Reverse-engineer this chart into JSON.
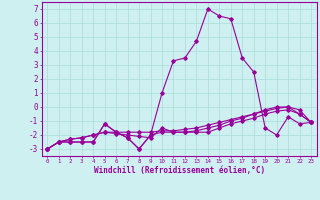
{
  "xlabel": "Windchill (Refroidissement éolien,°C)",
  "ylabel": "",
  "background_color": "#cef0f0",
  "grid_color": "#aadddd",
  "line_color": "#990099",
  "x_ticks": [
    0,
    1,
    2,
    3,
    4,
    5,
    6,
    7,
    8,
    9,
    10,
    11,
    12,
    13,
    14,
    15,
    16,
    17,
    18,
    19,
    20,
    21,
    22,
    23
  ],
  "ylim": [
    -3.5,
    7.5
  ],
  "xlim": [
    -0.5,
    23.5
  ],
  "y_ticks": [
    -3,
    -2,
    -1,
    0,
    1,
    2,
    3,
    4,
    5,
    6,
    7
  ],
  "series": [
    {
      "x": [
        0,
        1,
        2,
        3,
        4,
        5,
        6,
        7,
        8,
        9,
        10,
        11,
        12,
        13,
        14,
        15,
        16,
        17,
        18,
        19,
        20,
        21,
        22,
        23
      ],
      "y": [
        -3.0,
        -2.5,
        -2.5,
        -2.5,
        -2.5,
        -1.2,
        -1.8,
        -2.2,
        -3.0,
        -2.0,
        -1.8,
        -1.8,
        -1.8,
        -1.7,
        -1.5,
        -1.3,
        -1.0,
        -0.8,
        -0.5,
        -0.2,
        0.0,
        0.0,
        -0.5,
        -1.1
      ]
    },
    {
      "x": [
        0,
        1,
        2,
        3,
        4,
        5,
        6,
        7,
        8,
        9,
        10,
        11,
        12,
        13,
        14,
        15,
        16,
        17,
        18,
        19,
        20,
        21,
        22,
        23
      ],
      "y": [
        -3.0,
        -2.5,
        -2.3,
        -2.2,
        -2.0,
        -1.8,
        -1.8,
        -1.8,
        -1.8,
        -1.8,
        -1.7,
        -1.7,
        -1.6,
        -1.5,
        -1.3,
        -1.1,
        -0.9,
        -0.7,
        -0.5,
        -0.3,
        -0.1,
        0.0,
        -0.2,
        -1.1
      ]
    },
    {
      "x": [
        0,
        1,
        2,
        3,
        4,
        5,
        6,
        7,
        8,
        9,
        10,
        11,
        12,
        13,
        14,
        15,
        16,
        17,
        18,
        19,
        20,
        21,
        22,
        23
      ],
      "y": [
        -3.0,
        -2.5,
        -2.3,
        -2.2,
        -2.0,
        -1.8,
        -1.9,
        -2.0,
        -2.1,
        -2.2,
        -1.5,
        -1.8,
        -1.8,
        -1.8,
        -1.8,
        -1.5,
        -1.2,
        -1.0,
        -0.8,
        -0.5,
        -0.3,
        -0.2,
        -0.5,
        -1.1
      ]
    },
    {
      "x": [
        0,
        1,
        2,
        3,
        4,
        5,
        6,
        7,
        8,
        9,
        10,
        11,
        12,
        13,
        14,
        15,
        16,
        17,
        18,
        19,
        20,
        21,
        22,
        23
      ],
      "y": [
        -3.0,
        -2.5,
        -2.5,
        -2.5,
        -2.5,
        -1.2,
        -1.8,
        -2.2,
        -3.0,
        -2.0,
        1.0,
        3.3,
        3.5,
        4.7,
        7.0,
        6.5,
        6.3,
        3.5,
        2.5,
        -1.5,
        -2.0,
        -0.7,
        -1.2,
        -1.1
      ]
    }
  ]
}
